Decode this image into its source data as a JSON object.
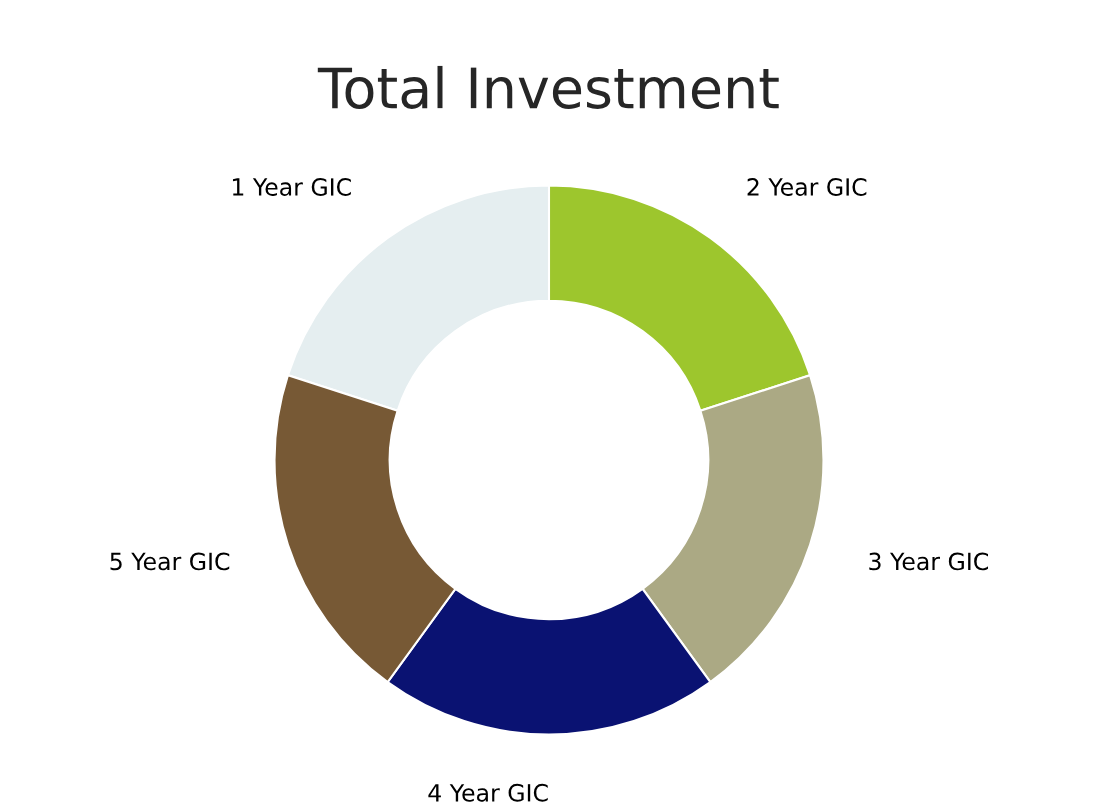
{
  "chart_data": {
    "type": "donut",
    "title": "Total Investment",
    "categories": [
      "1 Year GIC",
      "2 Year GIC",
      "3 Year GIC",
      "4 Year GIC",
      "5 Year GIC"
    ],
    "values": [
      20,
      20,
      20,
      20,
      20
    ],
    "colors": [
      "#e5eef0",
      "#9dc62d",
      "#aba984",
      "#0a1272",
      "#775935"
    ]
  }
}
